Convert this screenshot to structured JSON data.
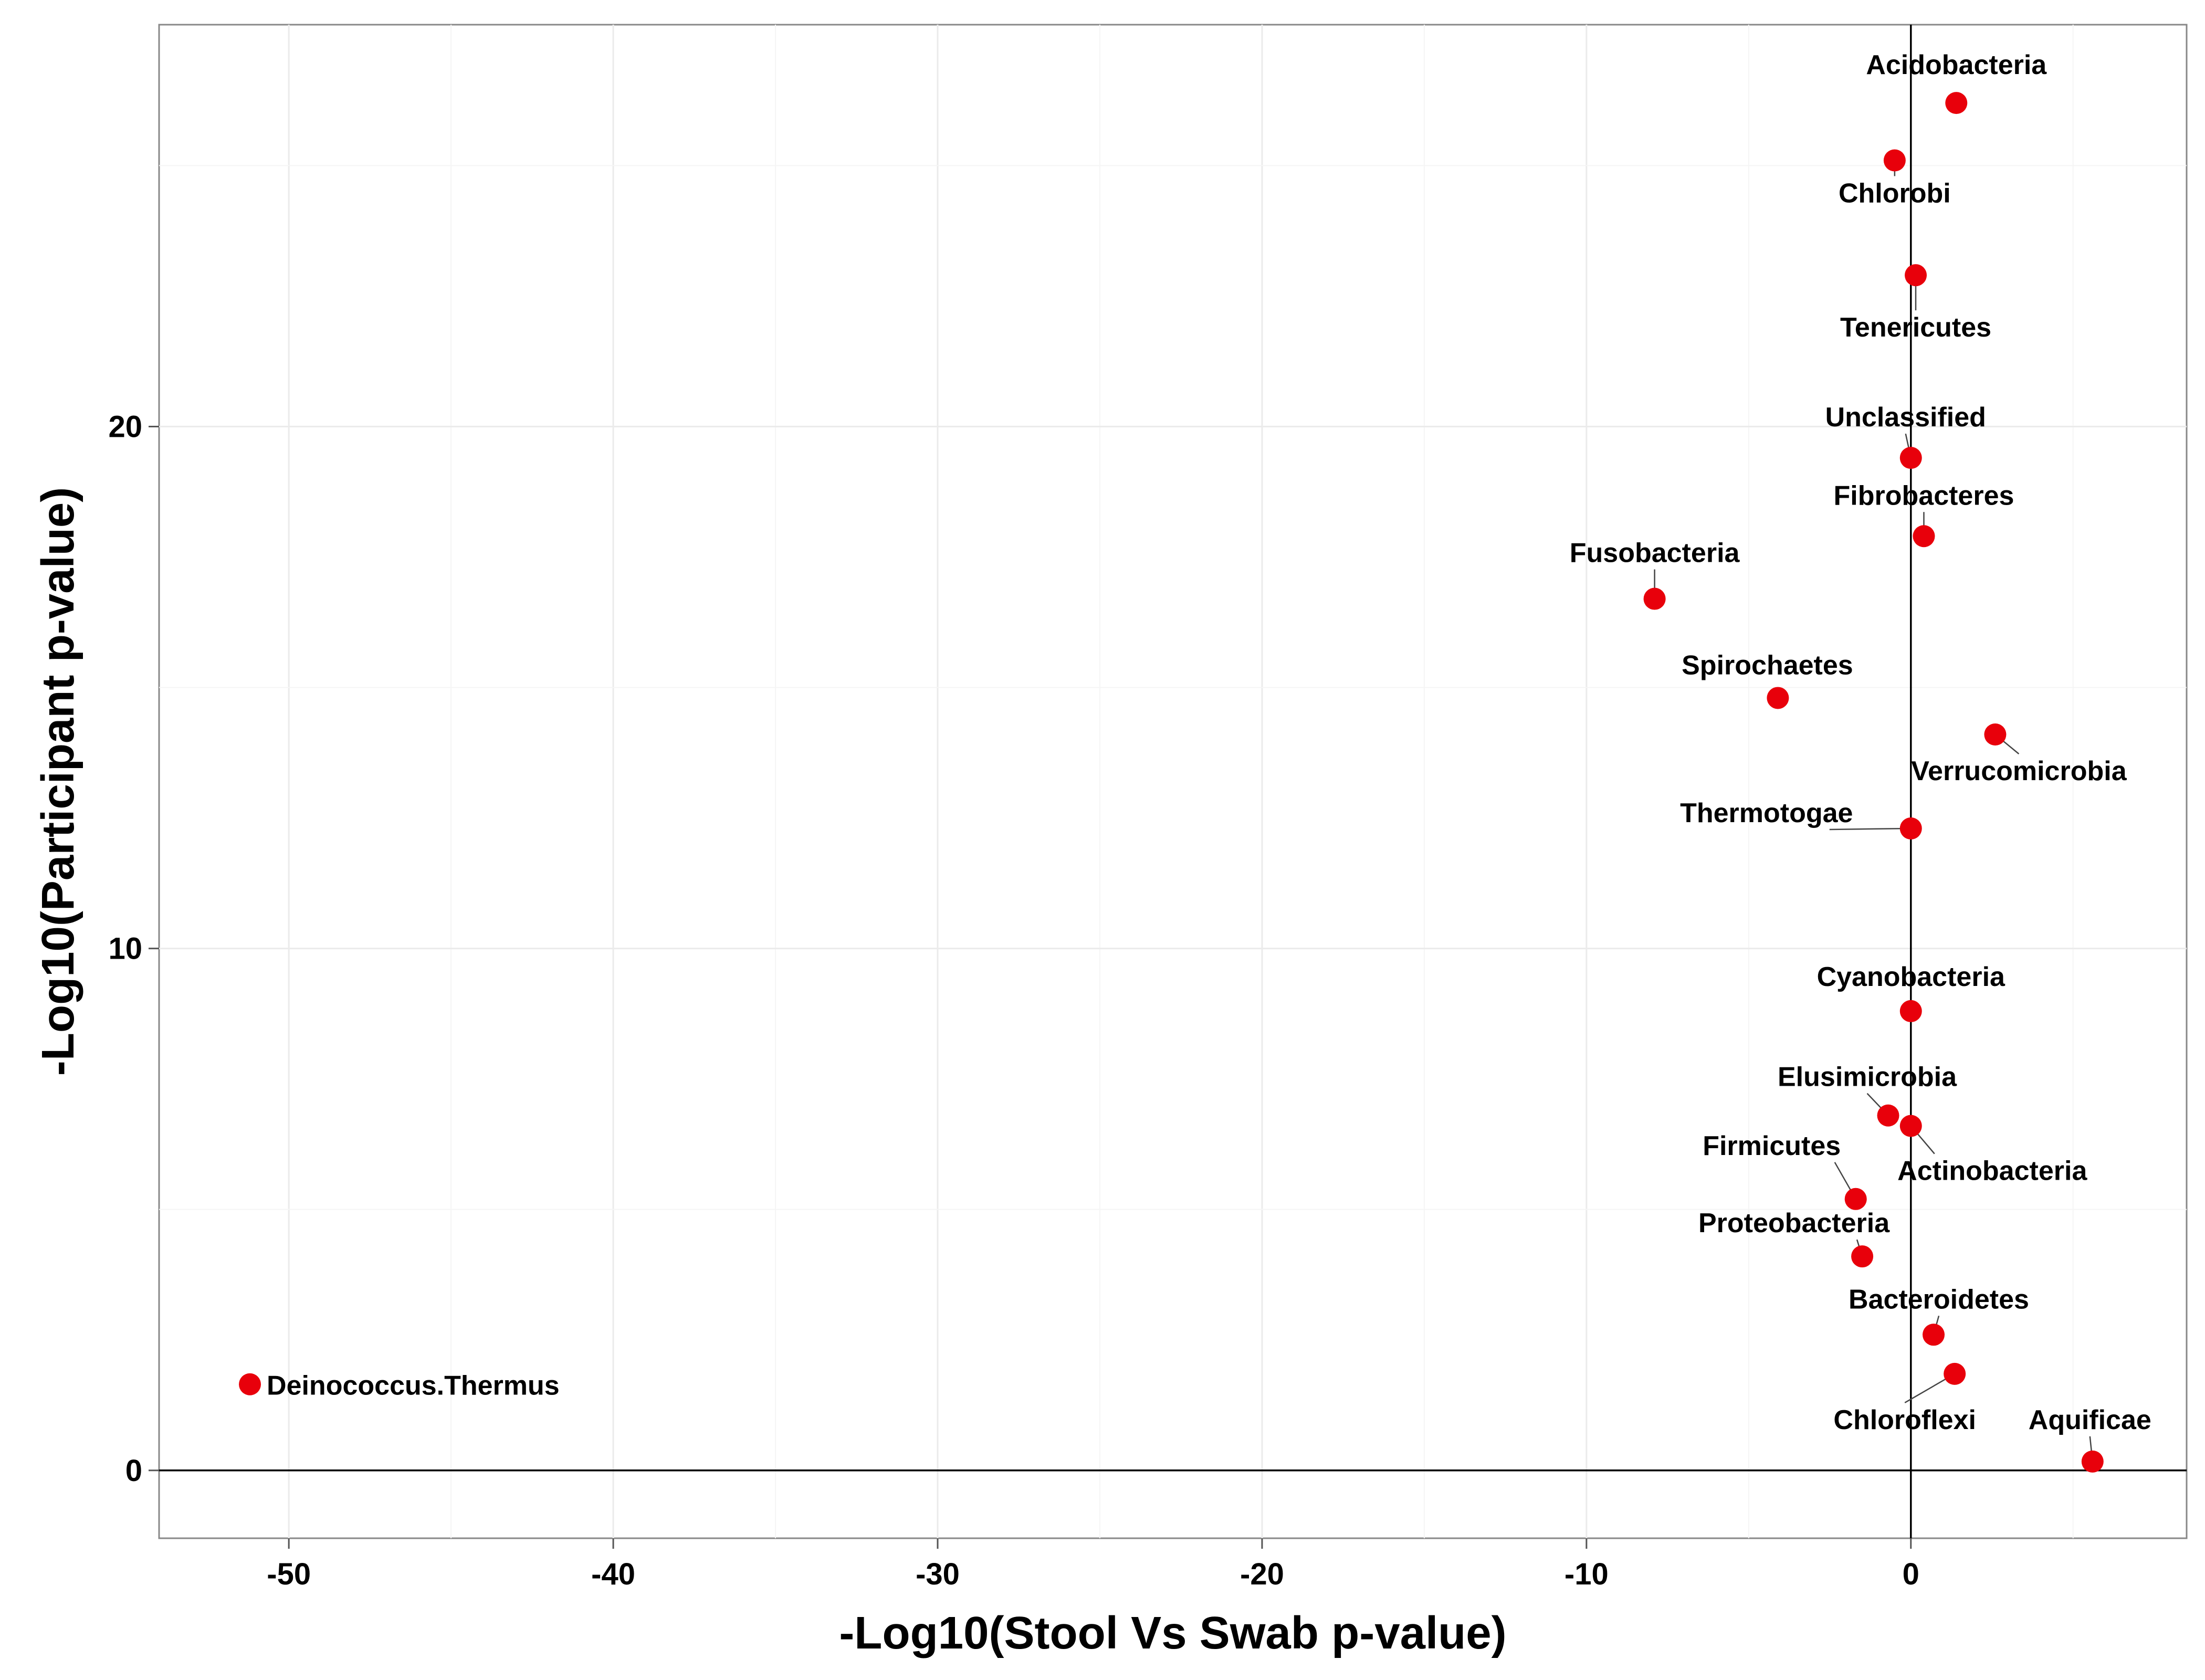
{
  "chart_data": {
    "type": "scatter",
    "title": "",
    "xlabel": "-Log10(Stool Vs Swab p-value)",
    "ylabel": "-Log10(Participant p-value)",
    "xlim": [
      -54,
      8.5
    ],
    "ylim": [
      -1.3,
      27.7
    ],
    "xticks": [
      -50,
      -40,
      -30,
      -20,
      -10,
      0
    ],
    "yticks": [
      0,
      10,
      20
    ],
    "xtick_labels": [
      "-50",
      "-40",
      "-30",
      "-20",
      "-10",
      "0"
    ],
    "ytick_labels": [
      "0",
      "10",
      "20"
    ],
    "grid": true,
    "reference_lines": {
      "x": 0,
      "y": 0
    },
    "point_color": "#e8000b",
    "points": [
      {
        "label": "Acidobacteria",
        "x": 1.4,
        "y": 26.2
      },
      {
        "label": "Chlorobi",
        "x": -0.5,
        "y": 25.1
      },
      {
        "label": "Tenericutes",
        "x": 0.15,
        "y": 22.9
      },
      {
        "label": "Unclassified",
        "x": 0.0,
        "y": 19.4
      },
      {
        "label": "Fibrobacteres",
        "x": 0.4,
        "y": 17.9
      },
      {
        "label": "Fusobacteria",
        "x": -7.9,
        "y": 16.7
      },
      {
        "label": "Spirochaetes",
        "x": -4.1,
        "y": 14.8
      },
      {
        "label": "Verrucomicrobia",
        "x": 2.6,
        "y": 14.1
      },
      {
        "label": "Thermotogae",
        "x": 0.0,
        "y": 12.3
      },
      {
        "label": "Cyanobacteria",
        "x": 0.0,
        "y": 8.8
      },
      {
        "label": "Elusimicrobia",
        "x": -0.7,
        "y": 6.8
      },
      {
        "label": "Actinobacteria",
        "x": 0.0,
        "y": 6.6
      },
      {
        "label": "Firmicutes",
        "x": -1.7,
        "y": 5.2
      },
      {
        "label": "Proteobacteria",
        "x": -1.5,
        "y": 4.1
      },
      {
        "label": "Bacteroidetes",
        "x": 0.7,
        "y": 2.6
      },
      {
        "label": "Chloroflexi",
        "x": 1.35,
        "y": 1.85
      },
      {
        "label": "Aquificae",
        "x": 5.6,
        "y": 0.17
      },
      {
        "label": "Deinococcus.Thermus",
        "x": -51.2,
        "y": 1.65
      }
    ]
  }
}
